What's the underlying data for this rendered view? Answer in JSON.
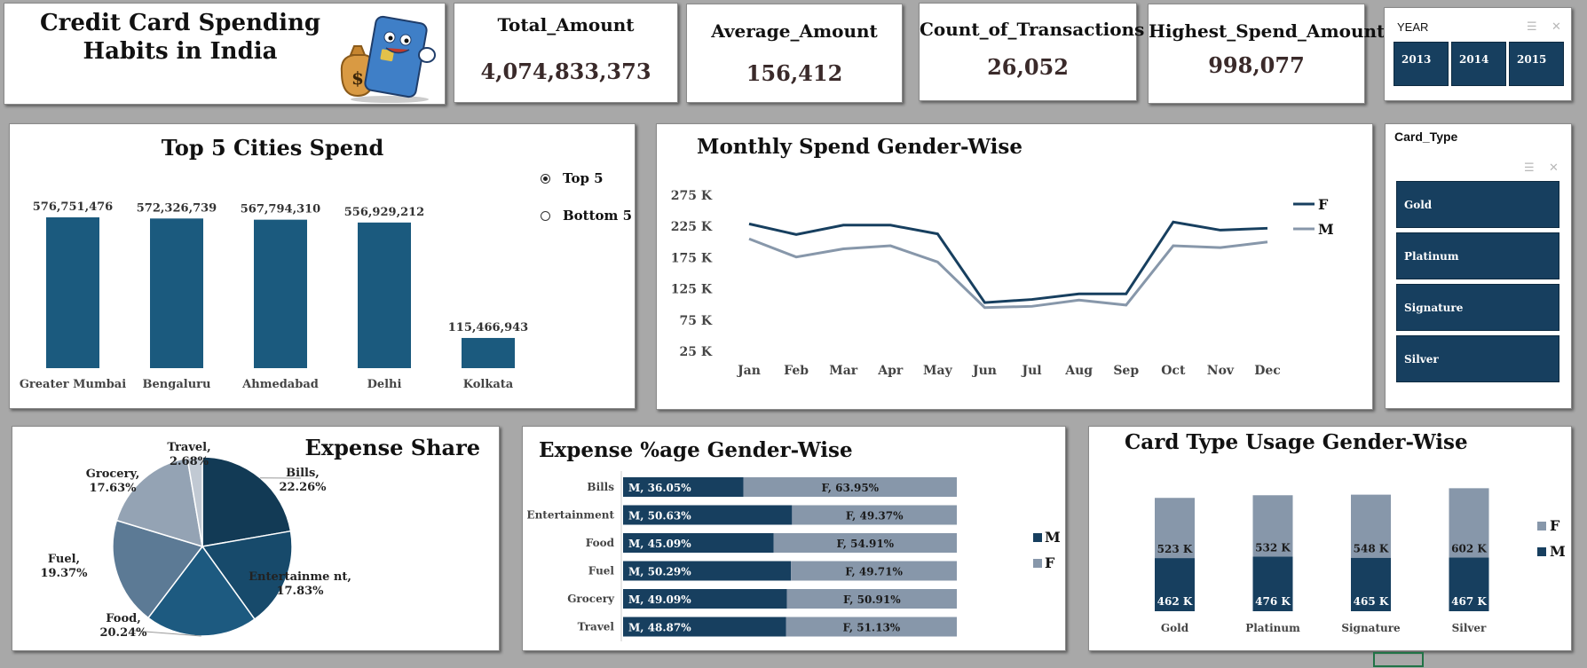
{
  "header": {
    "title": "Credit Card Spending Habits in India"
  },
  "kpis": [
    {
      "label": "Total_Amount",
      "value": "4,074,833,373"
    },
    {
      "label": "Average_Amount",
      "value": "156,412"
    },
    {
      "label": "Count_of_Transactions",
      "value": "26,052"
    },
    {
      "label": "Highest_Spend_Amount",
      "value": "998,077"
    }
  ],
  "year_slicer": {
    "header": "YEAR",
    "items": [
      "2013",
      "2014",
      "2015"
    ]
  },
  "card_slicer": {
    "header": "Card_Type",
    "items": [
      "Gold",
      "Platinum",
      "Signature",
      "Silver"
    ]
  },
  "slicer_icons": {
    "multi": "☰",
    "clear": "✕"
  },
  "top_cities": {
    "option_top": "Top 5",
    "option_bottom": "Bottom 5"
  },
  "colors": {
    "dark": "#1b5a7e",
    "navy": "#173f5f",
    "grey": "#8797aa"
  },
  "chart_data": [
    {
      "type": "bar",
      "title": "Top 5 Cities Spend",
      "categories": [
        "Greater Mumbai",
        "Bengaluru",
        "Ahmedabad",
        "Delhi",
        "Kolkata"
      ],
      "values": [
        576751476,
        572326739,
        567794310,
        556929212,
        115466943
      ],
      "labels": [
        "576,751,476",
        "572,326,739",
        "567,794,310",
        "556,929,212",
        "115,466,943"
      ]
    },
    {
      "type": "line",
      "title": "Monthly Spend Gender-Wise",
      "categories": [
        "Jan",
        "Feb",
        "Mar",
        "Apr",
        "May",
        "Jun",
        "Jul",
        "Aug",
        "Sep",
        "Oct",
        "Nov",
        "Dec"
      ],
      "yticks": [
        25,
        75,
        125,
        175,
        225,
        275
      ],
      "ytick_labels": [
        "25 K",
        "75 K",
        "125 K",
        "175 K",
        "225 K",
        "275 K"
      ],
      "ylim": [
        25,
        275
      ],
      "series": [
        {
          "name": "F",
          "values": [
            229,
            212,
            227,
            227,
            213,
            103,
            108,
            117,
            117,
            232,
            219,
            222
          ]
        },
        {
          "name": "M",
          "values": [
            205,
            176,
            189,
            194,
            168,
            95,
            97,
            107,
            99,
            194,
            191,
            200
          ]
        }
      ],
      "legend": "right"
    },
    {
      "type": "pie",
      "title": "Expense Share",
      "slices": [
        {
          "label": "Bills,",
          "pct_label": "22.26%",
          "value": 22.26
        },
        {
          "label": "Entertainme nt,",
          "pct_label": "17.83%",
          "value": 17.83
        },
        {
          "label": "Food,",
          "pct_label": "20.24%",
          "value": 20.24
        },
        {
          "label": "Fuel,",
          "pct_label": "19.37%",
          "value": 19.37
        },
        {
          "label": "Grocery,",
          "pct_label": "17.63%",
          "value": 17.63
        },
        {
          "label": "Travel,",
          "pct_label": "2.68%",
          "value": 2.68
        }
      ]
    },
    {
      "type": "bar",
      "orientation": "horizontal-stacked-100",
      "title": "Expense %age Gender-Wise",
      "categories": [
        "Bills",
        "Entertainment",
        "Food",
        "Fuel",
        "Grocery",
        "Travel"
      ],
      "series": [
        {
          "name": "M",
          "values": [
            36.05,
            50.63,
            45.09,
            50.29,
            49.09,
            48.87
          ],
          "labels": [
            "M, 36.05%",
            "M, 50.63%",
            "M, 45.09%",
            "M, 50.29%",
            "M, 49.09%",
            "M, 48.87%"
          ]
        },
        {
          "name": "F",
          "values": [
            63.95,
            49.37,
            54.91,
            49.71,
            50.91,
            51.13
          ],
          "labels": [
            "F, 63.95%",
            "F, 49.37%",
            "F, 54.91%",
            "F, 49.71%",
            "F, 50.91%",
            "F, 51.13%"
          ]
        }
      ],
      "legend": "right"
    },
    {
      "type": "bar",
      "orientation": "vertical-stacked",
      "title": "Card Type Usage Gender-Wise",
      "categories": [
        "Gold",
        "Platinum",
        "Signature",
        "Silver"
      ],
      "series": [
        {
          "name": "M",
          "values": [
            462,
            476,
            465,
            467
          ],
          "labels": [
            "462 K",
            "476 K",
            "465 K",
            "467 K"
          ]
        },
        {
          "name": "F",
          "values": [
            523,
            532,
            548,
            602
          ],
          "labels": [
            "523 K",
            "532 K",
            "548 K",
            "602 K"
          ]
        }
      ],
      "legend": "right"
    }
  ]
}
